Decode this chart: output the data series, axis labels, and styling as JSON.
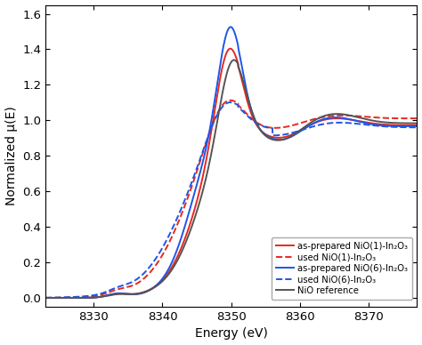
{
  "title": "",
  "xlabel": "Energy (eV)",
  "ylabel": "Normalized μ(E)",
  "xlim": [
    8323,
    8377
  ],
  "ylim": [
    -0.05,
    1.65
  ],
  "yticks": [
    0.0,
    0.2,
    0.4,
    0.6,
    0.8,
    1.0,
    1.2,
    1.4,
    1.6
  ],
  "xticks": [
    8330,
    8340,
    8350,
    8360,
    8370
  ],
  "legend_entries": [
    "as-prepared NiO(1)-In₂O₃",
    "used NiO(1)-In₂O₃",
    "as-prepared NiO(6)-In₂O₃",
    "used NiO(6)-In₂O₃",
    "NiO reference"
  ],
  "colors": {
    "red": "#e8281e",
    "blue": "#1e56e8",
    "gray": "#555555"
  },
  "linewidth": 1.4
}
